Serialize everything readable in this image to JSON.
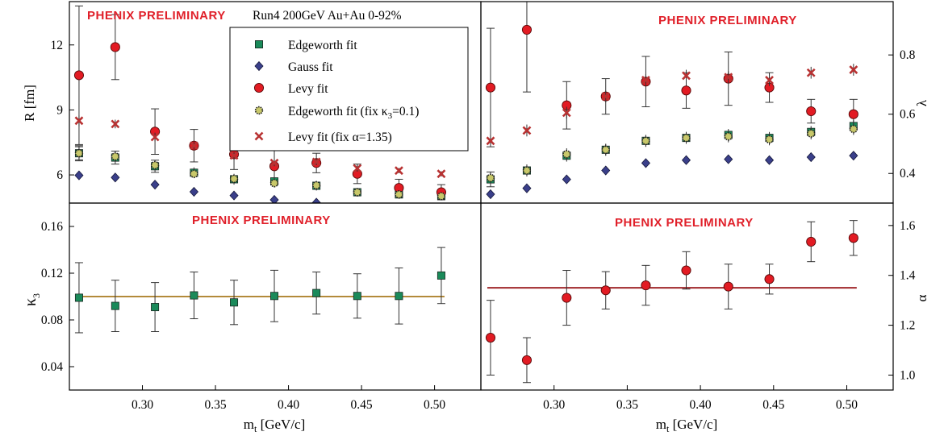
{
  "chart_data": {
    "type": "scatter",
    "x_axis": {
      "label_main": "m",
      "label_sub": "t",
      "label_unit": " [GeV/c]",
      "range": [
        0.25,
        0.5317
      ],
      "ticks": [
        0.3,
        0.35,
        0.4,
        0.45,
        0.5
      ],
      "tick_labels": [
        "0.30",
        "0.35",
        "0.40",
        "0.45",
        "0.50"
      ]
    },
    "x_values": [
      0.2566,
      0.2814,
      0.3086,
      0.3353,
      0.3627,
      0.3903,
      0.4191,
      0.4471,
      0.4756,
      0.5046
    ],
    "preliminary_label": "PHENIX PRELIMINARY",
    "panels": [
      {
        "id": "R",
        "ylabel": "R [fm]",
        "ylabel_side": "left",
        "ylim": [
          4.7,
          14.0
        ],
        "yticks": [
          6,
          9,
          12
        ],
        "ytick_labels": [
          "6",
          "9",
          "12"
        ],
        "annotation": "Run4 200GeV Au+Au 0-92%",
        "legend": [
          {
            "label": "Edgeworth fit",
            "series": "edgeworth"
          },
          {
            "label": "Gauss fit",
            "series": "gauss"
          },
          {
            "label": "Levy fit",
            "series": "levy"
          },
          {
            "label_main": "Edgeworth fit (fix κ",
            "label_sub": "3",
            "label_tail": "=0.1)",
            "series": "edgeworth_fix"
          },
          {
            "label": "Levy fit (fix α=1.35)",
            "series": "levy_fix"
          }
        ],
        "series": [
          {
            "key": "edgeworth",
            "marker": "square",
            "color": "#1a8a5a",
            "values": [
              7.0,
              6.8,
              6.4,
              6.1,
              5.8,
              5.7,
              5.5,
              5.2,
              5.1,
              5.05
            ],
            "errors": [
              0.35,
              0.3,
              0.28,
              0.25,
              0.25,
              0.25,
              0.22,
              0.2,
              0.2,
              0.2
            ]
          },
          {
            "key": "gauss",
            "marker": "diamond",
            "color": "#3a3f8a",
            "values": [
              5.98,
              5.88,
              5.55,
              5.22,
              5.05,
              4.85,
              4.72,
              4.5,
              4.45,
              4.35
            ],
            "errors": [
              0.08,
              0.08,
              0.08,
              0.07,
              0.07,
              0.07,
              0.07,
              0.07,
              0.07,
              0.07
            ]
          },
          {
            "key": "levy",
            "marker": "circle",
            "color": "#e21b23",
            "values": [
              10.6,
              11.9,
              8.0,
              7.35,
              6.95,
              6.4,
              6.55,
              6.05,
              5.4,
              5.2
            ],
            "errors": [
              3.2,
              1.5,
              1.05,
              0.75,
              0.7,
              0.75,
              0.45,
              0.45,
              0.4,
              0.35
            ]
          },
          {
            "key": "edgeworth_fix",
            "marker": "dotted-circle",
            "color": "#7a7a2a",
            "values": [
              7.0,
              6.85,
              6.45,
              6.05,
              5.82,
              5.62,
              5.52,
              5.2,
              5.1,
              5.02
            ],
            "errors": [
              0.3,
              0.25,
              0.22,
              0.2,
              0.2,
              0.2,
              0.18,
              0.18,
              0.18,
              0.18
            ]
          },
          {
            "key": "levy_fix",
            "marker": "cross",
            "color": "#b83232",
            "values": [
              8.5,
              8.35,
              7.75,
              7.35,
              6.9,
              6.55,
              6.6,
              6.3,
              6.2,
              6.05
            ],
            "errors": [
              0.25,
              0.2,
              0.2,
              0.18,
              0.15,
              0.15,
              0.15,
              0.15,
              0.12,
              0.12
            ]
          }
        ]
      },
      {
        "id": "lambda",
        "ylabel": "λ",
        "ylabel_side": "right",
        "ylim": [
          0.3,
          0.98
        ],
        "yticks": [
          0.4,
          0.6,
          0.8
        ],
        "ytick_labels": [
          "0.4",
          "0.6",
          "0.8"
        ],
        "series": [
          {
            "key": "edgeworth",
            "marker": "square",
            "color": "#1a8a5a",
            "values": [
              0.38,
              0.41,
              0.46,
              0.48,
              0.51,
              0.52,
              0.53,
              0.52,
              0.54,
              0.56
            ],
            "errors": [
              0.025,
              0.02,
              0.02,
              0.02,
              0.02,
              0.02,
              0.02,
              0.02,
              0.02,
              0.02
            ]
          },
          {
            "key": "gauss",
            "marker": "diamond",
            "color": "#3a3f8a",
            "values": [
              0.33,
              0.35,
              0.38,
              0.41,
              0.435,
              0.445,
              0.448,
              0.445,
              0.455,
              0.46
            ],
            "errors": [
              0.01,
              0.01,
              0.01,
              0.01,
              0.01,
              0.01,
              0.01,
              0.01,
              0.01,
              0.01
            ]
          },
          {
            "key": "levy",
            "marker": "circle",
            "color": "#e21b23",
            "values": [
              0.69,
              0.885,
              0.63,
              0.66,
              0.71,
              0.68,
              0.72,
              0.69,
              0.61,
              0.6
            ],
            "errors": [
              0.2,
              0.21,
              0.08,
              0.06,
              0.085,
              0.06,
              0.09,
              0.05,
              0.04,
              0.05
            ]
          },
          {
            "key": "edgeworth_fix",
            "marker": "dotted-circle",
            "color": "#7a7a2a",
            "values": [
              0.385,
              0.41,
              0.465,
              0.48,
              0.51,
              0.52,
              0.525,
              0.515,
              0.535,
              0.55
            ],
            "errors": [
              0.02,
              0.02,
              0.02,
              0.02,
              0.02,
              0.02,
              0.02,
              0.02,
              0.02,
              0.02
            ]
          },
          {
            "key": "levy_fix",
            "marker": "cross",
            "color": "#b83232",
            "values": [
              0.51,
              0.545,
              0.605,
              0.66,
              0.715,
              0.73,
              0.725,
              0.715,
              0.74,
              0.75
            ],
            "errors": [
              0.02,
              0.02,
              0.02,
              0.02,
              0.02,
              0.02,
              0.02,
              0.02,
              0.02,
              0.02
            ]
          }
        ]
      },
      {
        "id": "kappa3",
        "ylabel_main": "κ",
        "ylabel_sub": "3",
        "ylabel_side": "left",
        "ylim": [
          0.02,
          0.18
        ],
        "yticks": [
          0.04,
          0.08,
          0.12,
          0.16
        ],
        "ytick_labels": [
          "0.04",
          "0.08",
          "0.12",
          "0.16"
        ],
        "reference_line": {
          "value": 0.1,
          "color": "#b38a3a"
        },
        "series": [
          {
            "key": "edgeworth",
            "marker": "square",
            "color": "#1a8a5a",
            "values": [
              0.099,
              0.092,
              0.091,
              0.101,
              0.095,
              0.1005,
              0.103,
              0.1005,
              0.1005,
              0.118
            ],
            "errors": [
              0.03,
              0.022,
              0.021,
              0.02,
              0.019,
              0.022,
              0.018,
              0.019,
              0.024,
              0.024
            ]
          }
        ]
      },
      {
        "id": "alpha",
        "ylabel": "α",
        "ylabel_side": "right",
        "ylim": [
          0.94,
          1.69
        ],
        "yticks": [
          1.0,
          1.2,
          1.4,
          1.6
        ],
        "ytick_labels": [
          "1.0",
          "1.2",
          "1.4",
          "1.6"
        ],
        "reference_line": {
          "value": 1.35,
          "color": "#a0282c"
        },
        "series": [
          {
            "key": "levy",
            "marker": "circle",
            "color": "#e21b23",
            "values": [
              1.15,
              1.06,
              1.31,
              1.34,
              1.36,
              1.42,
              1.355,
              1.385,
              1.535,
              1.55
            ],
            "errors": [
              0.15,
              0.09,
              0.11,
              0.075,
              0.08,
              0.075,
              0.09,
              0.06,
              0.08,
              0.07
            ]
          }
        ]
      }
    ]
  }
}
